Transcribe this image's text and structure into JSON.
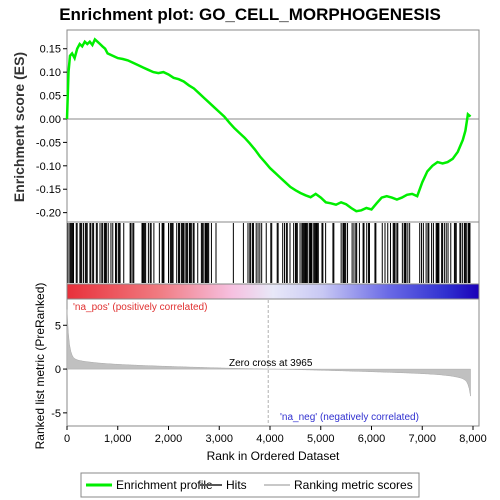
{
  "chart_data": {
    "type": "line",
    "title": "Enrichment plot: GO_CELL_MORPHOGENESIS",
    "xlabel": "Rank in Ordered Dataset",
    "ylabel_top": "Enrichment score (ES)",
    "ylabel_bottom": "Ranked list metric (PreRanked)",
    "xlim": [
      0,
      8000
    ],
    "x_ticks": [
      0,
      1000,
      2000,
      3000,
      4000,
      5000,
      6000,
      7000,
      8000
    ],
    "x_tick_labels": [
      "0",
      "1,000",
      "2,000",
      "3,000",
      "4,000",
      "5,000",
      "6,000",
      "7,000",
      "8,000"
    ],
    "es_ylim": [
      -0.22,
      0.19
    ],
    "es_ticks": [
      -0.2,
      -0.15,
      -0.1,
      -0.05,
      0.0,
      0.05,
      0.1,
      0.15
    ],
    "es_tick_labels": [
      "-0.20",
      "-0.15",
      "-0.10",
      "-0.05",
      "0.00",
      "0.05",
      "0.10",
      "0.15"
    ],
    "metric_ylim": [
      -6.5,
      8.0
    ],
    "metric_ticks": [
      -5,
      0,
      5
    ],
    "metric_tick_labels": [
      "-5",
      "0",
      "5"
    ],
    "series": [
      {
        "name": "Enrichment profile",
        "color": "#00ee00",
        "x": [
          0,
          30,
          60,
          100,
          150,
          200,
          250,
          300,
          350,
          400,
          450,
          500,
          550,
          600,
          650,
          700,
          750,
          800,
          900,
          1000,
          1100,
          1200,
          1300,
          1400,
          1500,
          1600,
          1700,
          1800,
          1900,
          2000,
          2100,
          2200,
          2300,
          2400,
          2500,
          2600,
          2700,
          2800,
          2900,
          3000,
          3100,
          3200,
          3300,
          3400,
          3500,
          3600,
          3700,
          3800,
          3900,
          4000,
          4100,
          4200,
          4300,
          4400,
          4500,
          4600,
          4700,
          4800,
          4900,
          5000,
          5100,
          5200,
          5300,
          5400,
          5500,
          5600,
          5700,
          5800,
          5900,
          6000,
          6100,
          6200,
          6300,
          6400,
          6500,
          6600,
          6700,
          6800,
          6900,
          7000,
          7100,
          7200,
          7300,
          7400,
          7500,
          7600,
          7700,
          7800,
          7850,
          7900,
          7950
        ],
        "y": [
          0.0,
          0.1,
          0.135,
          0.14,
          0.13,
          0.15,
          0.16,
          0.155,
          0.165,
          0.16,
          0.165,
          0.158,
          0.17,
          0.165,
          0.16,
          0.155,
          0.15,
          0.14,
          0.135,
          0.13,
          0.128,
          0.125,
          0.12,
          0.115,
          0.11,
          0.105,
          0.1,
          0.098,
          0.1,
          0.095,
          0.088,
          0.085,
          0.08,
          0.072,
          0.065,
          0.055,
          0.045,
          0.035,
          0.025,
          0.015,
          0.005,
          -0.008,
          -0.02,
          -0.03,
          -0.04,
          -0.052,
          -0.065,
          -0.08,
          -0.092,
          -0.105,
          -0.115,
          -0.125,
          -0.135,
          -0.145,
          -0.152,
          -0.158,
          -0.163,
          -0.167,
          -0.16,
          -0.168,
          -0.178,
          -0.18,
          -0.183,
          -0.178,
          -0.182,
          -0.19,
          -0.197,
          -0.195,
          -0.19,
          -0.193,
          -0.18,
          -0.168,
          -0.165,
          -0.168,
          -0.172,
          -0.168,
          -0.162,
          -0.16,
          -0.165,
          -0.135,
          -0.112,
          -0.1,
          -0.092,
          -0.095,
          -0.092,
          -0.085,
          -0.07,
          -0.045,
          -0.025,
          0.01,
          0.005
        ]
      }
    ],
    "hits_note": "",
    "zero_cross_label": "Zero cross at 3965",
    "zero_cross_x": 3965,
    "pos_label": "'na_pos' (positively correlated)",
    "neg_label": "'na_neg' (negatively correlated)",
    "legend": {
      "position": "bottom",
      "items": [
        "Enrichment profile",
        "Hits",
        "Ranking metric scores"
      ]
    }
  }
}
